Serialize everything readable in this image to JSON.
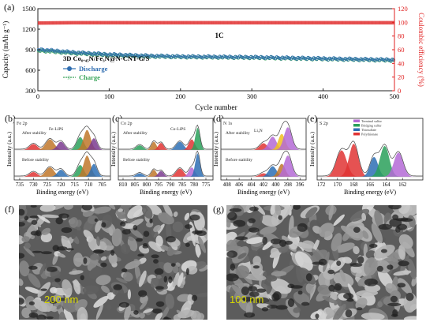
{
  "panels": {
    "a": "(a)",
    "b": "(b)",
    "c": "(c)",
    "d": "(d)",
    "e": "(e)",
    "f": "(f)",
    "g": "(g)"
  },
  "colors": {
    "discharge": "#2f6db0",
    "charge": "#3aa55a",
    "efficiency": "#e03030",
    "right_axis": "#e02020",
    "sem_scale": "#d8d800",
    "xps_fill": [
      "#e03434",
      "#2d6fb4",
      "#c0772a",
      "#7a3b8f",
      "#2aa05a",
      "#b46ad6",
      "#f0c020"
    ]
  },
  "chart_data": [
    {
      "type": "scatter",
      "panel": "a",
      "rate_label": "1C",
      "sample_label": "3D Co₀.₄₅N/Fe₃N@N-CNT-G/S",
      "xlabel": "Cycle number",
      "ylabel": "Capacity (mAh g⁻¹)",
      "y2label": "Coulombic efficiency (%)",
      "xlim": [
        0,
        500
      ],
      "ylim": [
        300,
        1500
      ],
      "y2lim": [
        0,
        120
      ],
      "xticks": [
        0,
        100,
        200,
        300,
        400,
        500
      ],
      "yticks": [
        300,
        600,
        900,
        1200,
        1500
      ],
      "y2ticks": [
        0,
        20,
        40,
        60,
        80,
        100,
        120
      ],
      "series": [
        {
          "name": "Discharge",
          "x": [
            0,
            50,
            100,
            150,
            200,
            250,
            300,
            350,
            400,
            450,
            500
          ],
          "values": [
            905,
            860,
            830,
            812,
            800,
            795,
            790,
            780,
            770,
            760,
            752
          ]
        },
        {
          "name": "Charge",
          "x": [
            0,
            50,
            100,
            150,
            200,
            250,
            300,
            350,
            400,
            450,
            500
          ],
          "values": [
            890,
            850,
            822,
            805,
            795,
            790,
            785,
            775,
            765,
            755,
            745
          ]
        },
        {
          "name": "",
          "axis": "right",
          "x": [
            0,
            50,
            100,
            150,
            200,
            250,
            300,
            350,
            400,
            450,
            500
          ],
          "values": [
            99,
            99.5,
            99.5,
            99.5,
            99.5,
            99.5,
            99.5,
            99.5,
            99.5,
            99.5,
            99.5
          ]
        }
      ]
    },
    {
      "type": "line",
      "panel": "b",
      "element_label": "Fe 2p",
      "xlabel": "Binding energy (eV)",
      "ylabel": "Intensity (a.u.)",
      "xlim": [
        737,
        702
      ],
      "xticks": [
        735,
        730,
        725,
        720,
        715,
        710,
        705
      ],
      "annotations": [
        "After stability",
        "Before stability",
        "Fe-LiPS"
      ],
      "peaks_eV": [
        730,
        724,
        720,
        713,
        711,
        708
      ]
    },
    {
      "type": "line",
      "panel": "c",
      "element_label": "Co 2p",
      "xlabel": "Binding energy (eV)",
      "ylabel": "Intensity (a.u.)",
      "xlim": [
        812,
        772
      ],
      "xticks": [
        810,
        805,
        800,
        795,
        790,
        785,
        780,
        775
      ],
      "annotations": [
        "After stability",
        "Before stability",
        "Co-LiPS"
      ],
      "peaks_eV": [
        803,
        797,
        794,
        786,
        781,
        778
      ]
    },
    {
      "type": "line",
      "panel": "d",
      "element_label": "N 1s",
      "xlabel": "Binding energy (eV)",
      "ylabel": "Intensity (a.u.)",
      "xlim": [
        409,
        395
      ],
      "xticks": [
        408,
        406,
        404,
        402,
        400,
        398,
        396
      ],
      "annotations": [
        "After stability",
        "Before stability",
        "Li₃N"
      ],
      "peaks_eV": [
        402,
        400.5,
        399,
        398
      ]
    },
    {
      "type": "line",
      "panel": "e",
      "element_label": "S 2p",
      "xlabel": "Binding energy (eV)",
      "ylabel": "Intensity (a.u.)",
      "xlim": [
        172.5,
        159.5
      ],
      "xticks": [
        172,
        170,
        168,
        166,
        164,
        162
      ],
      "legend": [
        "Terminal sulfur",
        "Bridging sulfur",
        "Thiosulfate",
        "Polythionate"
      ],
      "peaks_eV": [
        169.5,
        168,
        165.5,
        164.2,
        162.5
      ]
    }
  ],
  "sem": {
    "f_scale": "200 nm",
    "g_scale": "100 nm"
  }
}
